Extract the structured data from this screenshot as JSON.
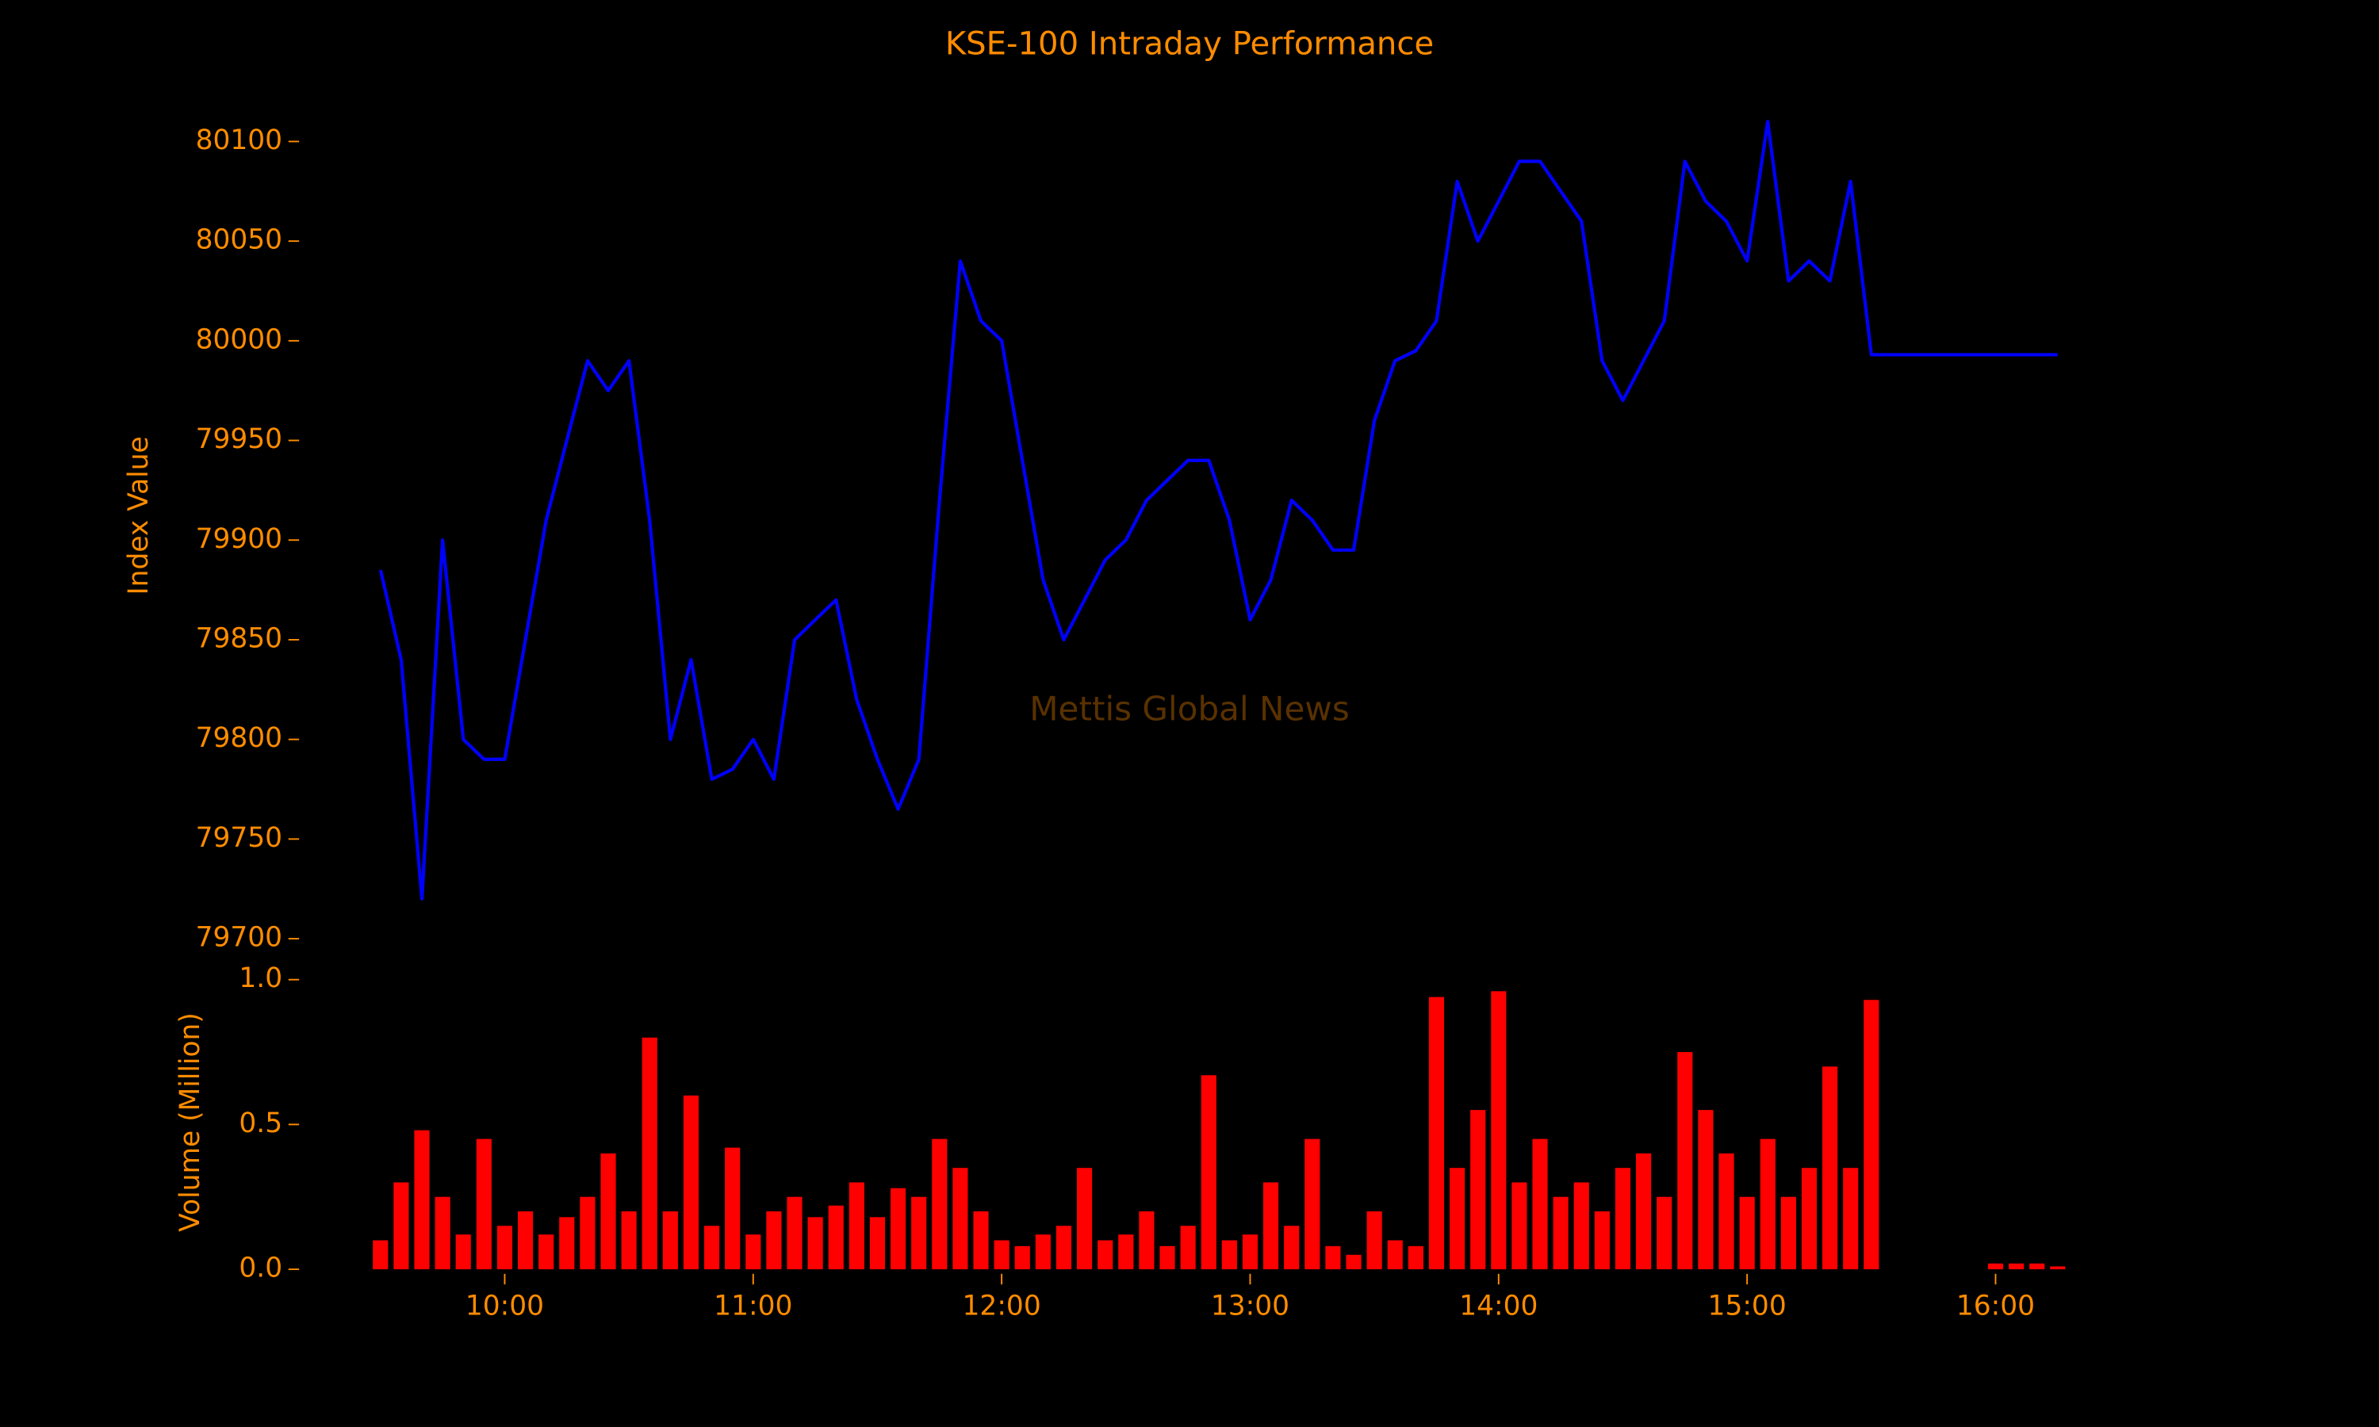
{
  "chart_data": [
    {
      "type": "line",
      "title": "KSE-100 Intraday Performance",
      "ylabel": "Index Value",
      "annotation": "Mettis Global News",
      "color": "#0000ff",
      "x": [
        "09:30",
        "09:35",
        "09:40",
        "09:45",
        "09:50",
        "09:55",
        "10:00",
        "10:05",
        "10:10",
        "10:15",
        "10:20",
        "10:25",
        "10:30",
        "10:35",
        "10:40",
        "10:45",
        "10:50",
        "10:55",
        "11:00",
        "11:05",
        "11:10",
        "11:15",
        "11:20",
        "11:25",
        "11:30",
        "11:35",
        "11:40",
        "11:45",
        "11:50",
        "11:55",
        "12:00",
        "12:05",
        "12:10",
        "12:15",
        "12:20",
        "12:25",
        "12:30",
        "12:35",
        "12:40",
        "12:45",
        "12:50",
        "12:55",
        "13:00",
        "13:05",
        "13:10",
        "13:15",
        "13:20",
        "13:25",
        "13:30",
        "13:35",
        "13:40",
        "13:45",
        "13:50",
        "13:55",
        "14:00",
        "14:05",
        "14:10",
        "14:15",
        "14:20",
        "14:25",
        "14:30",
        "14:35",
        "14:40",
        "14:45",
        "14:50",
        "14:55",
        "15:00",
        "15:05",
        "15:10",
        "15:15",
        "15:20",
        "15:25",
        "15:30",
        "16:15"
      ],
      "values": [
        79885,
        79840,
        79720,
        79900,
        79800,
        79790,
        79790,
        79850,
        79910,
        79950,
        79990,
        79975,
        79990,
        79910,
        79800,
        79840,
        79780,
        79785,
        79800,
        79780,
        79850,
        79860,
        79870,
        79820,
        79790,
        79765,
        79790,
        79920,
        80040,
        80010,
        80000,
        79940,
        79880,
        79850,
        79870,
        79890,
        79900,
        79920,
        79930,
        79940,
        79940,
        79910,
        79860,
        79880,
        79920,
        79910,
        79895,
        79895,
        79960,
        79990,
        79995,
        80010,
        80080,
        80050,
        80070,
        80090,
        80090,
        80075,
        80060,
        79990,
        79970,
        79990,
        80010,
        80090,
        80070,
        80060,
        80040,
        80110,
        80030,
        80040,
        80030,
        80080,
        79993,
        79993
      ],
      "xlim": [
        "09:25",
        "16:20"
      ],
      "ylim": [
        79700,
        80120
      ],
      "yticks": [
        79700,
        79750,
        79800,
        79850,
        79900,
        79950,
        80000,
        80050,
        80100
      ]
    },
    {
      "type": "bar",
      "ylabel": "Volume (Million)",
      "color": "#ff0000",
      "x": [
        "09:30",
        "09:35",
        "09:40",
        "09:45",
        "09:50",
        "09:55",
        "10:00",
        "10:05",
        "10:10",
        "10:15",
        "10:20",
        "10:25",
        "10:30",
        "10:35",
        "10:40",
        "10:45",
        "10:50",
        "10:55",
        "11:00",
        "11:05",
        "11:10",
        "11:15",
        "11:20",
        "11:25",
        "11:30",
        "11:35",
        "11:40",
        "11:45",
        "11:50",
        "11:55",
        "12:00",
        "12:05",
        "12:10",
        "12:15",
        "12:20",
        "12:25",
        "12:30",
        "12:35",
        "12:40",
        "12:45",
        "12:50",
        "12:55",
        "13:00",
        "13:05",
        "13:10",
        "13:15",
        "13:20",
        "13:25",
        "13:30",
        "13:35",
        "13:40",
        "13:45",
        "13:50",
        "13:55",
        "14:00",
        "14:05",
        "14:10",
        "14:15",
        "14:20",
        "14:25",
        "14:30",
        "14:35",
        "14:40",
        "14:45",
        "14:50",
        "14:55",
        "15:00",
        "15:05",
        "15:10",
        "15:15",
        "15:20",
        "15:25",
        "15:30",
        "16:00",
        "16:05",
        "16:10",
        "16:15"
      ],
      "values": [
        0.1,
        0.3,
        0.48,
        0.25,
        0.12,
        0.45,
        0.15,
        0.2,
        0.12,
        0.18,
        0.25,
        0.4,
        0.2,
        0.8,
        0.2,
        0.6,
        0.15,
        0.42,
        0.12,
        0.2,
        0.25,
        0.18,
        0.22,
        0.3,
        0.18,
        0.28,
        0.25,
        0.45,
        0.35,
        0.2,
        0.1,
        0.08,
        0.12,
        0.15,
        0.35,
        0.1,
        0.12,
        0.2,
        0.08,
        0.15,
        0.67,
        0.1,
        0.12,
        0.3,
        0.15,
        0.45,
        0.08,
        0.05,
        0.2,
        0.1,
        0.08,
        0.94,
        0.35,
        0.55,
        0.96,
        0.3,
        0.45,
        0.25,
        0.3,
        0.2,
        0.35,
        0.4,
        0.25,
        0.75,
        0.55,
        0.4,
        0.25,
        0.45,
        0.25,
        0.35,
        0.7,
        0.35,
        0.93,
        0.02,
        0.02,
        0.02,
        0.01
      ],
      "xlim": [
        "09:25",
        "16:20"
      ],
      "ylim": [
        0,
        1.0
      ],
      "yticks": [
        {
          "value": 0,
          "label": "0.0"
        },
        {
          "value": 0.5,
          "label": "0.5"
        },
        {
          "value": 1,
          "label": "1.0"
        }
      ],
      "xticks": [
        "10:00",
        "11:00",
        "12:00",
        "13:00",
        "14:00",
        "15:00",
        "16:00"
      ]
    }
  ]
}
